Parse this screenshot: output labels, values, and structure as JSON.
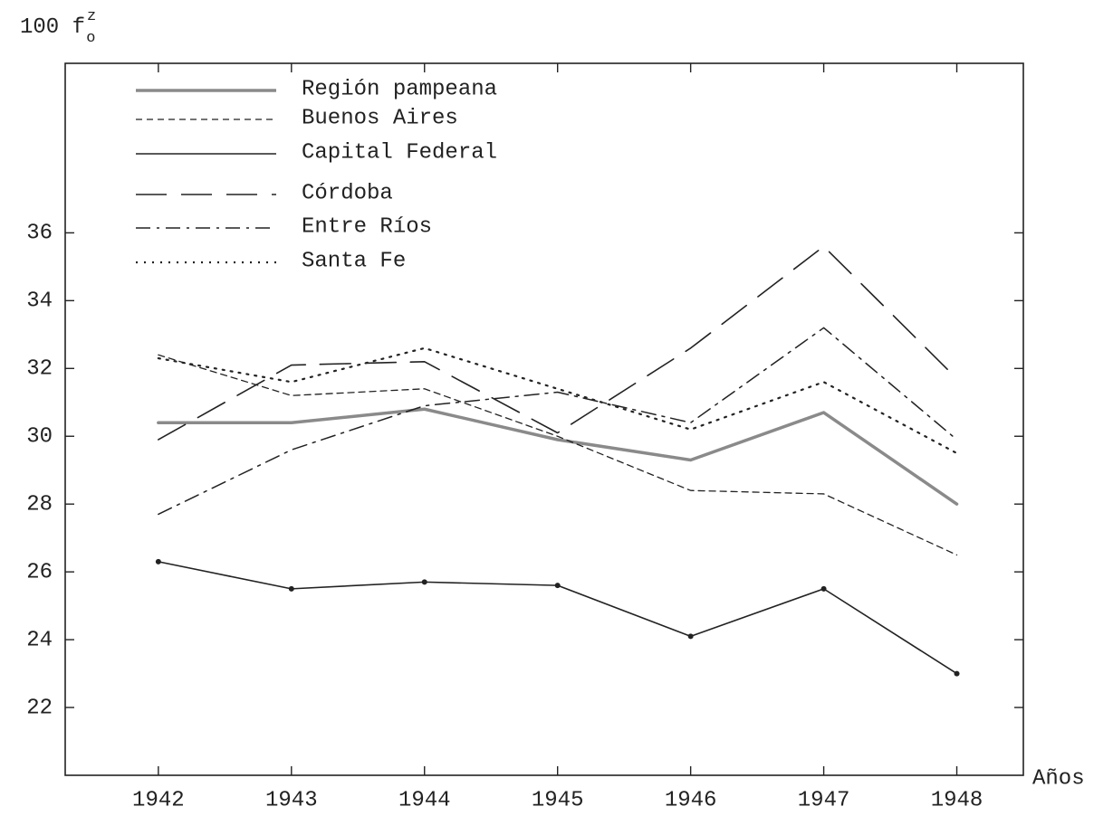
{
  "chart_data": {
    "type": "line",
    "y_label": {
      "base": "100 f",
      "sup": "z",
      "sub": "o"
    },
    "x_label": "Años",
    "x": [
      1942,
      1943,
      1944,
      1945,
      1946,
      1947,
      1948
    ],
    "xlim": [
      1941.3,
      1948.5
    ],
    "xticks": [
      1942,
      1943,
      1944,
      1945,
      1946,
      1947,
      1948
    ],
    "ylim": [
      20,
      41
    ],
    "yticks": [
      22,
      24,
      26,
      28,
      30,
      32,
      34,
      36
    ],
    "legend": "upper left",
    "series": [
      {
        "name": "Región pampeana",
        "color": "#8a8a8a",
        "dash": "solid-thick",
        "values": [
          30.4,
          30.4,
          30.8,
          29.9,
          29.3,
          30.7,
          28.0
        ]
      },
      {
        "name": "Buenos Aires",
        "color": "#222222",
        "dash": "short-dash",
        "values": [
          32.4,
          31.2,
          31.4,
          30.0,
          28.4,
          28.3,
          26.5
        ]
      },
      {
        "name": "Capital Federal",
        "color": "#222222",
        "dash": "solid-dots",
        "values": [
          26.3,
          25.5,
          25.7,
          25.6,
          24.1,
          25.5,
          23.0
        ]
      },
      {
        "name": "Córdoba",
        "color": "#222222",
        "dash": "long-dash",
        "values": [
          29.9,
          32.1,
          32.2,
          30.1,
          32.6,
          35.6,
          31.7
        ]
      },
      {
        "name": "Entre Ríos",
        "color": "#222222",
        "dash": "dash-dot",
        "values": [
          27.7,
          29.6,
          30.9,
          31.3,
          30.4,
          33.2,
          29.9
        ]
      },
      {
        "name": "Santa Fe",
        "color": "#222222",
        "dash": "dotted",
        "values": [
          32.3,
          31.6,
          32.6,
          31.4,
          30.2,
          31.6,
          29.5
        ]
      }
    ]
  }
}
